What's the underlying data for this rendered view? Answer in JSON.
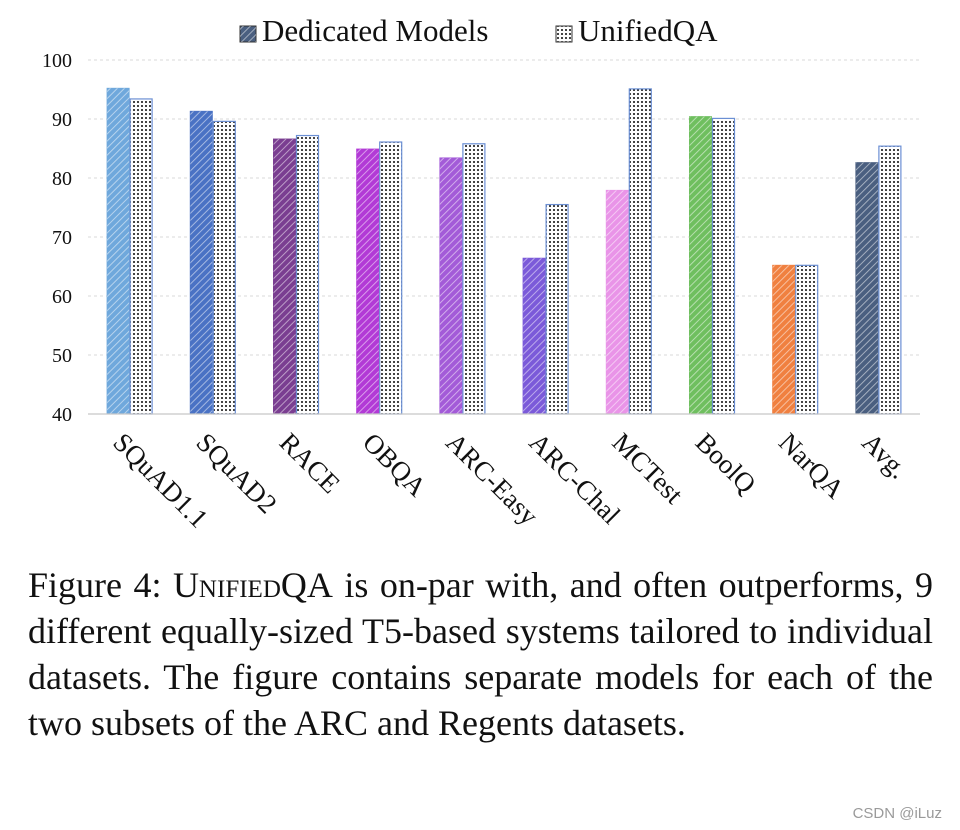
{
  "chart_data": {
    "type": "bar",
    "categories": [
      "SQuAD1.1",
      "SQuAD2",
      "RACE",
      "OBQA",
      "ARC-Easy",
      "ARC-Chal",
      "MCTest",
      "BoolQ",
      "NarQA",
      "Avg."
    ],
    "series": [
      {
        "name": "Dedicated Models",
        "values": [
          95.2,
          91.3,
          86.6,
          84.9,
          83.4,
          66.4,
          77.9,
          90.4,
          65.2,
          82.6
        ]
      },
      {
        "name": "UnifiedQA",
        "values": [
          93.4,
          89.6,
          87.2,
          86.1,
          85.8,
          75.5,
          95.1,
          90.1,
          65.2,
          85.4
        ]
      }
    ],
    "category_colors": [
      "#6fa8dc",
      "#4a72c4",
      "#7a3e91",
      "#b23ad6",
      "#a35bd8",
      "#7b5ad9",
      "#e994e8",
      "#6fbf5f",
      "#f08040",
      "#4a5f80"
    ],
    "ylim": [
      40,
      100
    ],
    "yticks": [
      40,
      50,
      60,
      70,
      80,
      90,
      100
    ],
    "grid": true,
    "legend_position": "top",
    "title": "",
    "xlabel": "",
    "ylabel": ""
  },
  "caption": {
    "prefix": "Figure 4: ",
    "smallcaps": "UnifiedQA",
    "rest": " is on-par with, and often outperforms, 9 different equally-sized T5-based systems tailored to individual datasets. The figure contains separate models for each of the two subsets of the ARC and Regents datasets."
  },
  "watermark": "CSDN @iLuz"
}
